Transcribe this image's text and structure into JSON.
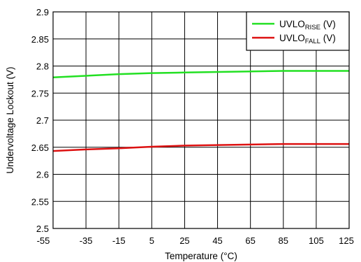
{
  "chart_data": {
    "type": "line",
    "title": "",
    "xlabel": "Temperature (°C)",
    "ylabel": "Undervoltage Lockout (V)",
    "xlim": [
      -55,
      125
    ],
    "ylim": [
      2.5,
      2.9
    ],
    "x_ticks": [
      -55,
      -35,
      -15,
      5,
      25,
      45,
      65,
      85,
      105,
      125
    ],
    "y_ticks": [
      2.5,
      2.55,
      2.6,
      2.65,
      2.7,
      2.75,
      2.8,
      2.85,
      2.9
    ],
    "x_tick_labels": [
      "-55",
      "-35",
      "-15",
      "5",
      "25",
      "45",
      "65",
      "85",
      "105",
      "125"
    ],
    "y_tick_labels": [
      "2.5",
      "2.55",
      "2.6",
      "2.65",
      "2.7",
      "2.75",
      "2.8",
      "2.85",
      "2.9"
    ],
    "grid": true,
    "legend_position": "top-right",
    "series": [
      {
        "name": "UVLO",
        "subscript": "RISE",
        "suffix": " (V)",
        "color": "#22e022",
        "x": [
          -55,
          -35,
          -15,
          5,
          25,
          45,
          65,
          85,
          105,
          125
        ],
        "y": [
          2.779,
          2.782,
          2.785,
          2.787,
          2.788,
          2.789,
          2.79,
          2.791,
          2.791,
          2.791
        ]
      },
      {
        "name": "UVLO",
        "subscript": "FALL",
        "suffix": " (V)",
        "color": "#dd1111",
        "x": [
          -55,
          -35,
          -15,
          5,
          25,
          45,
          65,
          85,
          105,
          125
        ],
        "y": [
          2.643,
          2.646,
          2.648,
          2.651,
          2.653,
          2.654,
          2.655,
          2.656,
          2.656,
          2.656
        ]
      }
    ]
  }
}
